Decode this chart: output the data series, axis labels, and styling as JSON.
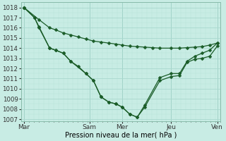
{
  "xlabel": "Pression niveau de la mer( hPa )",
  "bg_color": "#c8ece4",
  "grid_major_color": "#a8d8ce",
  "grid_minor_color": "#b8e4da",
  "line_color": "#1a5c28",
  "ylim": [
    1006.8,
    1018.5
  ],
  "xlim": [
    -0.2,
    13.0
  ],
  "ytick_values": [
    1007,
    1008,
    1009,
    1010,
    1011,
    1012,
    1013,
    1014,
    1015,
    1016,
    1017,
    1018
  ],
  "xtick_positions": [
    0,
    4.33,
    6.5,
    9.75,
    12.8
  ],
  "xtick_labels": [
    "Mar",
    "Sam",
    "Mer",
    "Jeu",
    "Ven"
  ],
  "line1": {
    "x": [
      0,
      1.0,
      1.7,
      2.1,
      2.6,
      3.1,
      3.6,
      4.1,
      4.6,
      5.1,
      5.6,
      6.1,
      6.5,
      7.0,
      7.5,
      8.0,
      8.5,
      9.0,
      9.75,
      10.3,
      10.8,
      11.3,
      11.8,
      12.3,
      12.8
    ],
    "y": [
      1018,
      1016.8,
      1016.0,
      1015.8,
      1015.5,
      1015.3,
      1015.1,
      1014.9,
      1014.7,
      1014.6,
      1014.5,
      1014.4,
      1014.3,
      1014.2,
      1014.15,
      1014.1,
      1014.05,
      1014.0,
      1014.0,
      1014.0,
      1014.05,
      1014.1,
      1014.15,
      1014.3,
      1014.5
    ]
  },
  "line2": {
    "x": [
      0,
      0.7,
      1.0,
      1.7,
      2.1,
      2.6,
      3.1,
      3.6,
      4.1,
      4.6,
      5.1,
      5.6,
      6.1,
      6.5,
      7.0,
      7.5,
      8.0,
      9.0,
      9.75,
      10.3,
      10.8,
      11.3,
      11.8,
      12.3,
      12.8
    ],
    "y": [
      1018,
      1017.0,
      1016.0,
      1014.0,
      1013.8,
      1013.5,
      1012.7,
      1012.2,
      1011.5,
      1010.8,
      1009.2,
      1008.7,
      1008.5,
      1008.2,
      1007.5,
      1007.2,
      1008.2,
      1010.8,
      1011.2,
      1011.3,
      1012.6,
      1012.9,
      1013.0,
      1013.2,
      1014.2
    ]
  },
  "line3": {
    "x": [
      0,
      0.7,
      1.0,
      1.7,
      2.1,
      2.6,
      3.1,
      4.1,
      4.6,
      5.1,
      5.6,
      6.1,
      6.5,
      7.0,
      7.5,
      8.0,
      9.0,
      9.75,
      10.3,
      10.8,
      11.3,
      11.8,
      12.3,
      12.8
    ],
    "y": [
      1018,
      1017.0,
      1016.1,
      1014.0,
      1013.8,
      1013.5,
      1012.7,
      1011.5,
      1010.8,
      1009.2,
      1008.7,
      1008.5,
      1008.2,
      1007.5,
      1007.2,
      1008.4,
      1011.1,
      1011.5,
      1011.5,
      1012.7,
      1013.2,
      1013.5,
      1013.8,
      1014.5
    ]
  },
  "marker_size": 2.5,
  "line_width": 0.9
}
